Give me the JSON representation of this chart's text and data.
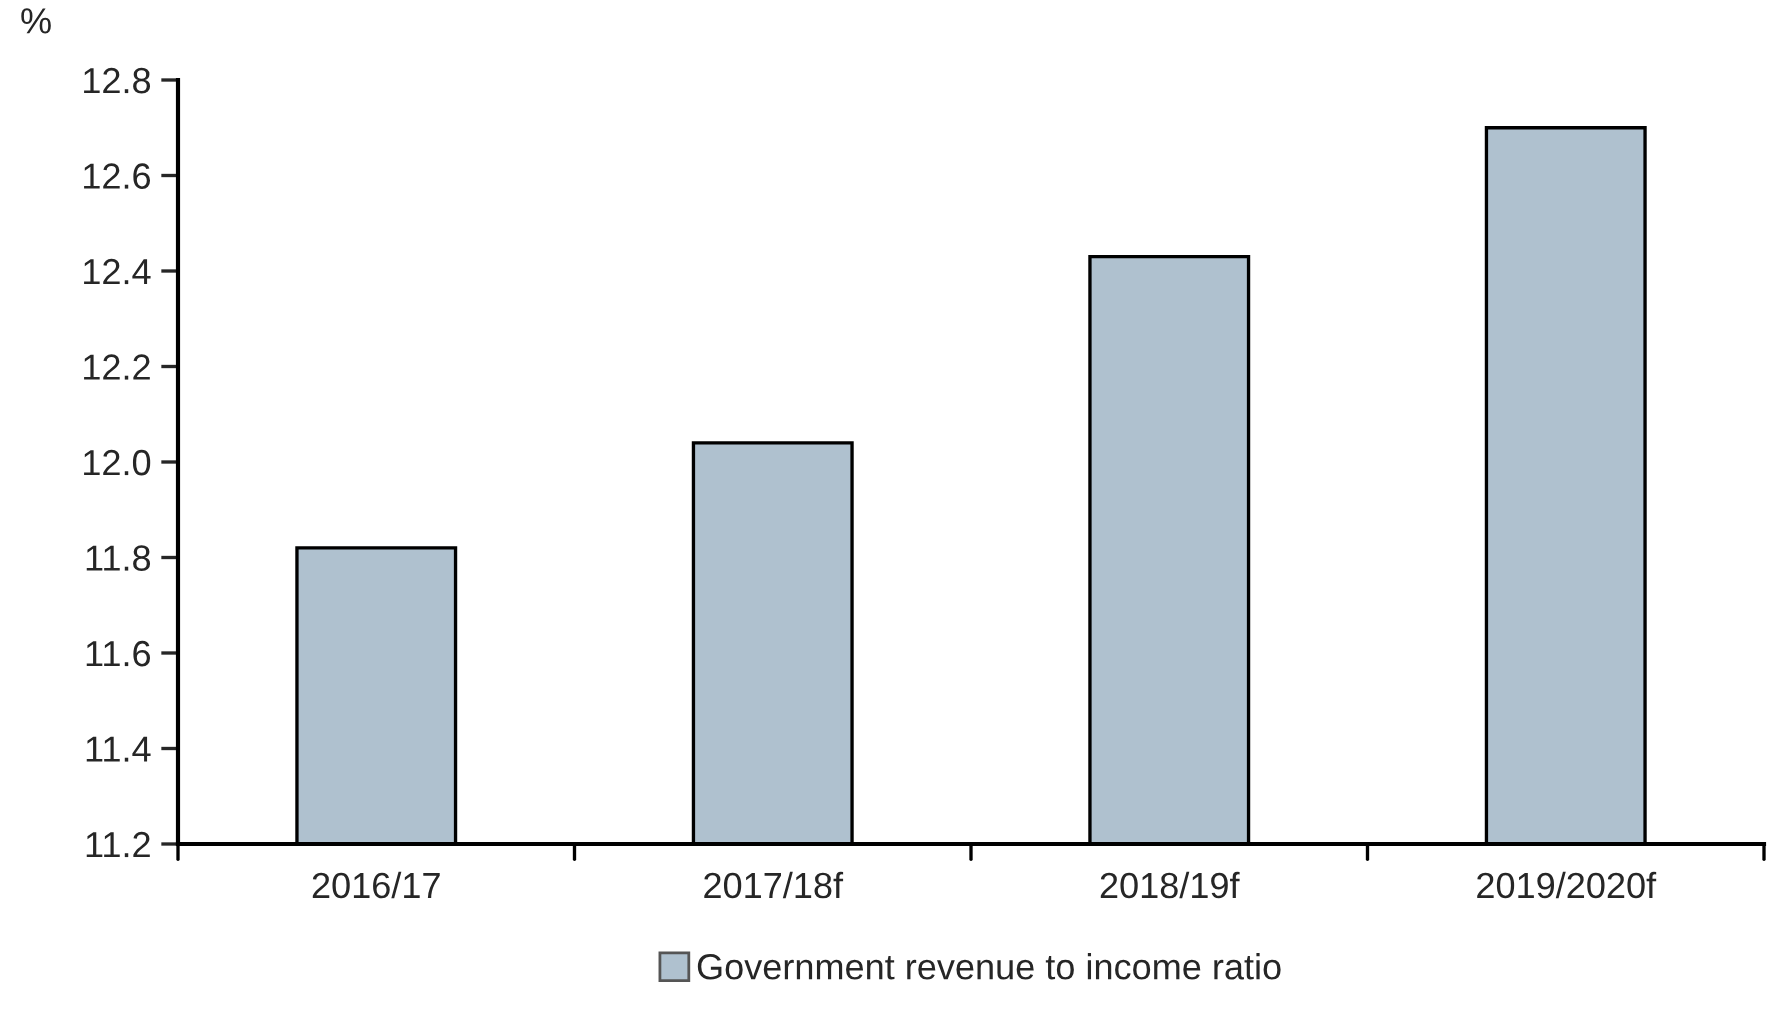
{
  "chart_data": {
    "type": "bar",
    "ylabel": "%",
    "categories": [
      "2016/17",
      "2017/18f",
      "2018/19f",
      "2019/2020f"
    ],
    "series": [
      {
        "name": "Government revenue to income ratio",
        "color": "#afc1cf",
        "values": [
          11.82,
          12.04,
          12.43,
          12.7
        ]
      }
    ],
    "ylim": [
      11.2,
      12.8
    ],
    "yticks": [
      {
        "value": 11.2,
        "label": "11.2"
      },
      {
        "value": 11.4,
        "label": "11.4"
      },
      {
        "value": 11.6,
        "label": "11.6"
      },
      {
        "value": 11.8,
        "label": "11.8"
      },
      {
        "value": 12.0,
        "label": "12.0"
      },
      {
        "value": 12.2,
        "label": "12.2"
      },
      {
        "value": 12.4,
        "label": "12.4"
      },
      {
        "value": 12.6,
        "label": "12.6"
      },
      {
        "value": 12.8,
        "label": "12.8"
      }
    ],
    "grid": false,
    "legend": "bottom"
  }
}
